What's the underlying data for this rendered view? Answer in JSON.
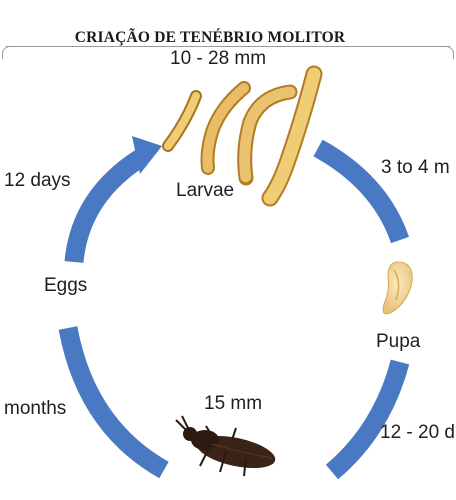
{
  "title": "CRIAÇÃO DE TENÉBRIO MOLITOR",
  "stages": {
    "larvae": {
      "name": "Larvae",
      "size": "10 - 28 mm"
    },
    "pupa": {
      "name": "Pupa"
    },
    "beetle": {
      "size": "15 mm"
    },
    "eggs": {
      "name": "Eggs"
    }
  },
  "durations": {
    "larvae_to_pupa": "3 to 4 m",
    "pupa_to_beetle": "12 - 20 d",
    "beetle_to_eggs": "months",
    "eggs_to_larvae": "12 days"
  },
  "colors": {
    "arrow": "#4a79c4",
    "larva": "#e2b45a",
    "pupa": "#f2d79a",
    "beetle": "#3a2418"
  },
  "icons": [
    "mealworm-larva-icon",
    "pupa-icon",
    "darkling-beetle-icon",
    "cycle-arrow-icon"
  ]
}
